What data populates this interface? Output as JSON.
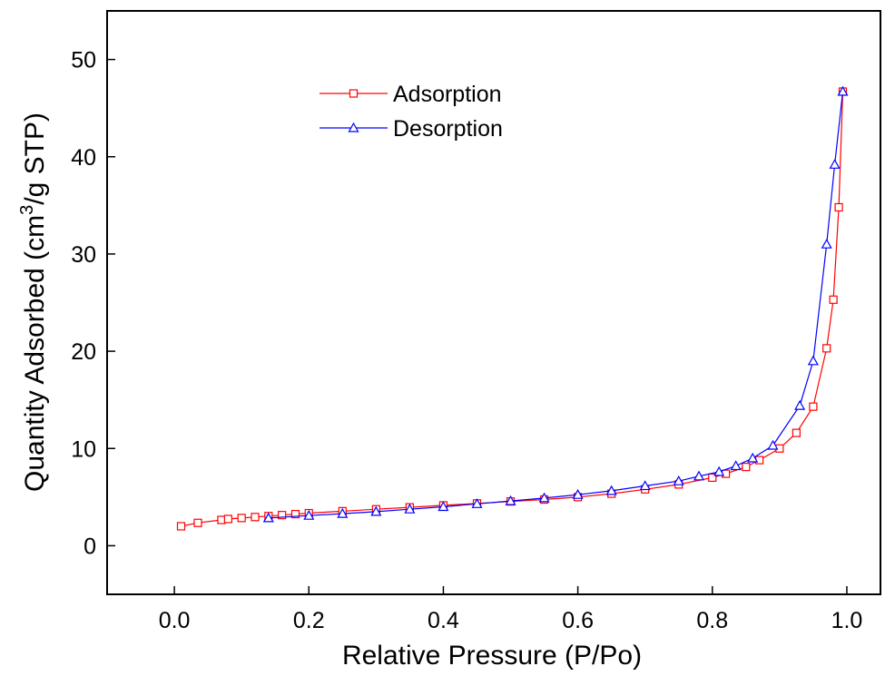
{
  "chart_data": {
    "type": "scatter",
    "title": "",
    "xlabel": "Relative Pressure (P/Po)",
    "ylabel_main": "Quantity Adsorbed (cm",
    "ylabel_sup": "3",
    "ylabel_tail": "/g STP)",
    "xlim": [
      -0.1,
      1.05
    ],
    "ylim": [
      -5,
      55
    ],
    "xticks": [
      0.0,
      0.2,
      0.4,
      0.6,
      0.8,
      1.0
    ],
    "xtick_labels": [
      "0.0",
      "0.2",
      "0.4",
      "0.6",
      "0.8",
      "1.0"
    ],
    "yticks": [
      0,
      10,
      20,
      30,
      40,
      50
    ],
    "ytick_labels": [
      "0",
      "10",
      "20",
      "30",
      "40",
      "50"
    ],
    "grid": false,
    "legend_position": "top-center",
    "series": [
      {
        "name": "Adsorption",
        "color": "#ff0000",
        "marker": "square",
        "points": [
          [
            0.01,
            2.0
          ],
          [
            0.035,
            2.35
          ],
          [
            0.07,
            2.65
          ],
          [
            0.08,
            2.75
          ],
          [
            0.1,
            2.85
          ],
          [
            0.12,
            2.95
          ],
          [
            0.14,
            3.05
          ],
          [
            0.16,
            3.15
          ],
          [
            0.18,
            3.25
          ],
          [
            0.2,
            3.35
          ],
          [
            0.25,
            3.55
          ],
          [
            0.3,
            3.75
          ],
          [
            0.35,
            3.95
          ],
          [
            0.4,
            4.15
          ],
          [
            0.45,
            4.35
          ],
          [
            0.5,
            4.55
          ],
          [
            0.55,
            4.75
          ],
          [
            0.6,
            5.0
          ],
          [
            0.65,
            5.35
          ],
          [
            0.7,
            5.8
          ],
          [
            0.75,
            6.3
          ],
          [
            0.8,
            7.0
          ],
          [
            0.82,
            7.4
          ],
          [
            0.85,
            8.1
          ],
          [
            0.87,
            8.8
          ],
          [
            0.9,
            10.0
          ],
          [
            0.925,
            11.6
          ],
          [
            0.95,
            14.3
          ],
          [
            0.97,
            20.3
          ],
          [
            0.98,
            25.3
          ],
          [
            0.988,
            34.8
          ],
          [
            0.994,
            46.7
          ]
        ]
      },
      {
        "name": "Desorption",
        "color": "#0000ff",
        "marker": "triangle",
        "points": [
          [
            0.994,
            46.7
          ],
          [
            0.982,
            39.2
          ],
          [
            0.97,
            31.0
          ],
          [
            0.95,
            19.0
          ],
          [
            0.93,
            14.4
          ],
          [
            0.89,
            10.3
          ],
          [
            0.86,
            9.0
          ],
          [
            0.835,
            8.2
          ],
          [
            0.81,
            7.6
          ],
          [
            0.78,
            7.15
          ],
          [
            0.75,
            6.65
          ],
          [
            0.7,
            6.15
          ],
          [
            0.65,
            5.65
          ],
          [
            0.6,
            5.25
          ],
          [
            0.55,
            4.9
          ],
          [
            0.5,
            4.6
          ],
          [
            0.45,
            4.3
          ],
          [
            0.4,
            4.0
          ],
          [
            0.35,
            3.75
          ],
          [
            0.3,
            3.5
          ],
          [
            0.25,
            3.3
          ],
          [
            0.2,
            3.1
          ],
          [
            0.14,
            2.85
          ]
        ]
      }
    ]
  }
}
